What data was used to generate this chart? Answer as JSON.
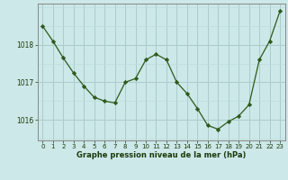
{
  "x": [
    0,
    1,
    2,
    3,
    4,
    5,
    6,
    7,
    8,
    9,
    10,
    11,
    12,
    13,
    14,
    15,
    16,
    17,
    18,
    19,
    20,
    21,
    22,
    23
  ],
  "y": [
    1018.5,
    1018.1,
    1017.65,
    1017.25,
    1016.9,
    1016.6,
    1016.5,
    1016.45,
    1017.0,
    1017.1,
    1017.6,
    1017.75,
    1017.6,
    1017.0,
    1016.7,
    1016.3,
    1015.85,
    1015.75,
    1015.95,
    1016.1,
    1016.4,
    1017.6,
    1018.1,
    1018.9
  ],
  "line_color": "#2d5a1b",
  "marker_color": "#2d5a1b",
  "bg_color": "#cce8e8",
  "grid_color_major": "#aacccc",
  "grid_color_minor": "#bbdddd",
  "xlabel": "Graphe pression niveau de la mer (hPa)",
  "xlabel_color": "#1a3a0a",
  "yticks": [
    1016,
    1017,
    1018
  ],
  "xticks": [
    0,
    1,
    2,
    3,
    4,
    5,
    6,
    7,
    8,
    9,
    10,
    11,
    12,
    13,
    14,
    15,
    16,
    17,
    18,
    19,
    20,
    21,
    22,
    23
  ],
  "ylim": [
    1015.45,
    1019.1
  ],
  "xlim": [
    -0.5,
    23.5
  ],
  "tick_label_color": "#1a3a0a",
  "spine_color": "#888888",
  "tick_fontsize": 5.0,
  "xlabel_fontsize": 6.0
}
